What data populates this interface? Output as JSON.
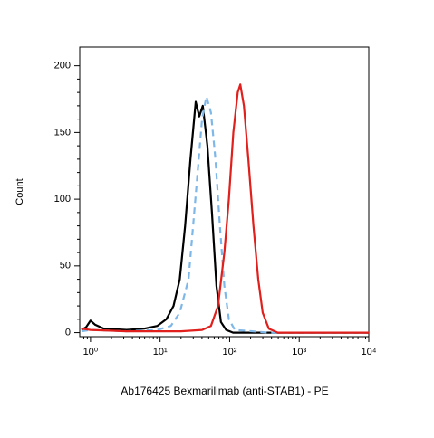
{
  "chart_data": {
    "type": "line",
    "x_label": "Ab176425 Bexmarilimab (anti-STAB1) - PE",
    "y_label": "Count",
    "xscale": "log",
    "xlim": [
      0.7,
      10000
    ],
    "ylim": [
      -3,
      214
    ],
    "xticks": [
      {
        "value": 1,
        "label": "10⁰"
      },
      {
        "value": 10,
        "label": "10¹"
      },
      {
        "value": 100,
        "label": "10²"
      },
      {
        "value": 1000,
        "label": "10³"
      },
      {
        "value": 10000,
        "label": "10⁴"
      }
    ],
    "xminorticks": [
      0.8,
      0.9,
      2,
      3,
      4,
      5,
      6,
      7,
      8,
      9,
      20,
      30,
      40,
      50,
      60,
      70,
      80,
      90,
      200,
      300,
      400,
      500,
      600,
      700,
      800,
      900,
      2000,
      3000,
      4000,
      5000,
      6000,
      7000,
      8000,
      9000
    ],
    "yticks": [
      0,
      50,
      100,
      150,
      200
    ],
    "yminorticks": [
      10,
      20,
      30,
      40,
      60,
      70,
      80,
      90,
      110,
      120,
      130,
      140,
      160,
      170,
      180,
      190
    ],
    "series": [
      {
        "color": "#000000",
        "dash": "solid",
        "x": [
          0.74,
          0.86,
          1.0,
          1.16,
          1.56,
          3.3,
          5.9,
          9.1,
          12.3,
          15.6,
          19.2,
          22.9,
          27.3,
          32.5,
          36.6,
          41.1,
          47.9,
          55.6,
          64.6,
          74.9,
          89,
          112,
          366,
          10000
        ],
        "values": [
          2,
          4,
          9,
          6,
          3,
          2,
          3,
          5,
          10,
          20,
          40,
          80,
          130,
          173,
          162,
          170,
          140,
          90,
          35,
          8,
          2,
          0,
          0,
          0
        ]
      },
      {
        "color": "#7fb8e8",
        "dash": "dashed",
        "x": [
          0.74,
          1.0,
          3.3,
          9.1,
          14.3,
          19.2,
          25.7,
          29.8,
          34.6,
          40.1,
          46.4,
          53.9,
          62.5,
          72.5,
          84,
          97.5,
          119,
          366,
          10000
        ],
        "values": [
          1,
          2,
          1,
          2,
          5,
          15,
          40,
          80,
          120,
          160,
          177,
          165,
          130,
          80,
          35,
          10,
          2,
          0,
          0
        ]
      },
      {
        "color": "#e0201c",
        "dash": "solid",
        "x": [
          0.74,
          1.0,
          3.3,
          20,
          40.1,
          53.9,
          68.1,
          84,
          97.5,
          112.9,
          130.8,
          142.3,
          160.4,
          186,
          220,
          258,
          298,
          366,
          492,
          10000
        ],
        "values": [
          3,
          2,
          1,
          1,
          2,
          5,
          20,
          60,
          100,
          150,
          180,
          186,
          170,
          130,
          80,
          40,
          15,
          3,
          0,
          0
        ]
      }
    ]
  }
}
